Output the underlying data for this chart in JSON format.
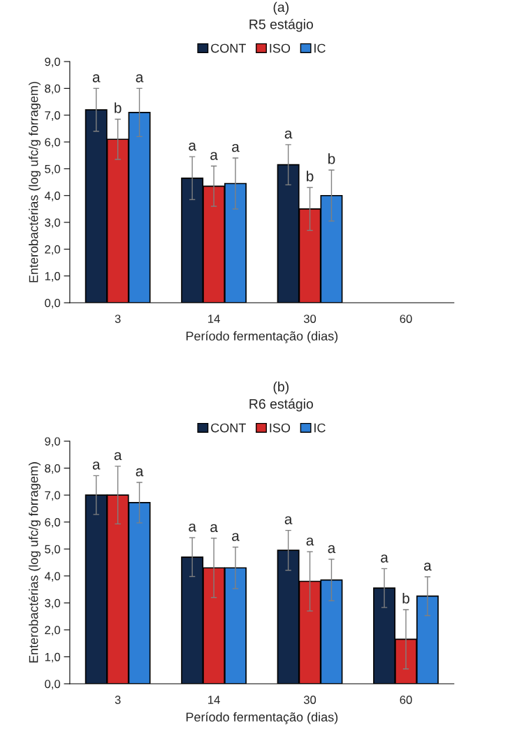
{
  "chart_data": [
    {
      "type": "bar",
      "title": "(a)",
      "subtitle": "R5 estágio",
      "xlabel": "Período fermentação (dias)",
      "ylabel": "Enterobactérias (log ufc/g forragem)",
      "categories": [
        "3",
        "14",
        "30",
        "60"
      ],
      "series": [
        {
          "name": "CONT",
          "color": "#12284a",
          "values": [
            7.2,
            4.65,
            5.15,
            null
          ],
          "errors": [
            0.8,
            0.8,
            0.75,
            null
          ],
          "value_labels": [
            "a",
            "a",
            "a",
            null
          ]
        },
        {
          "name": "ISO",
          "color": "#d42a2a",
          "values": [
            6.1,
            4.35,
            3.5,
            null
          ],
          "errors": [
            0.75,
            0.75,
            0.8,
            null
          ],
          "value_labels": [
            "b",
            "a",
            "b",
            null
          ]
        },
        {
          "name": "IC",
          "color": "#2e7fd6",
          "values": [
            7.1,
            4.45,
            4.0,
            null
          ],
          "errors": [
            0.9,
            0.95,
            0.95,
            null
          ],
          "value_labels": [
            "a",
            "a",
            "b",
            null
          ]
        }
      ],
      "ylim": [
        0,
        9
      ],
      "yticks": [
        {
          "value": 0,
          "label": "0,0"
        },
        {
          "value": 1,
          "label": "1,0"
        },
        {
          "value": 2,
          "label": "2,0"
        },
        {
          "value": 3,
          "label": "3,0"
        },
        {
          "value": 4,
          "label": "4,0"
        },
        {
          "value": 5,
          "label": "5,0"
        },
        {
          "value": 6,
          "label": "6,0"
        },
        {
          "value": 7,
          "label": "7,0"
        },
        {
          "value": 8,
          "label": "8,0"
        },
        {
          "value": 9,
          "label": "9,0"
        }
      ],
      "legend": "top",
      "grid": false
    },
    {
      "type": "bar",
      "title": "(b)",
      "subtitle": "R6 estágio",
      "xlabel": "Período fermentação (dias)",
      "ylabel": "Enterobactérias (log ufc/g forragem)",
      "categories": [
        "3",
        "14",
        "30",
        "60"
      ],
      "series": [
        {
          "name": "CONT",
          "color": "#12284a",
          "values": [
            7.0,
            4.7,
            4.95,
            3.55
          ],
          "errors": [
            0.72,
            0.72,
            0.74,
            0.72
          ],
          "value_labels": [
            "a",
            "a",
            "a",
            "a"
          ]
        },
        {
          "name": "ISO",
          "color": "#d42a2a",
          "values": [
            7.0,
            4.3,
            3.8,
            1.65
          ],
          "errors": [
            1.07,
            1.1,
            1.1,
            1.1
          ],
          "value_labels": [
            "a",
            "a",
            "a",
            "b"
          ]
        },
        {
          "name": "IC",
          "color": "#2e7fd6",
          "values": [
            6.72,
            4.3,
            3.85,
            3.25
          ],
          "errors": [
            0.75,
            0.77,
            0.77,
            0.72
          ],
          "value_labels": [
            "a",
            "a",
            "a",
            "a"
          ]
        }
      ],
      "ylim": [
        0,
        9
      ],
      "yticks": [
        {
          "value": 0,
          "label": "0,0"
        },
        {
          "value": 1,
          "label": "1,0"
        },
        {
          "value": 2,
          "label": "2,0"
        },
        {
          "value": 3,
          "label": "3,0"
        },
        {
          "value": 4,
          "label": "4,0"
        },
        {
          "value": 5,
          "label": "5,0"
        },
        {
          "value": 6,
          "label": "6,0"
        },
        {
          "value": 7,
          "label": "7,0"
        },
        {
          "value": 8,
          "label": "8,0"
        },
        {
          "value": 9,
          "label": "9,0"
        }
      ],
      "legend": "top",
      "grid": false
    }
  ]
}
